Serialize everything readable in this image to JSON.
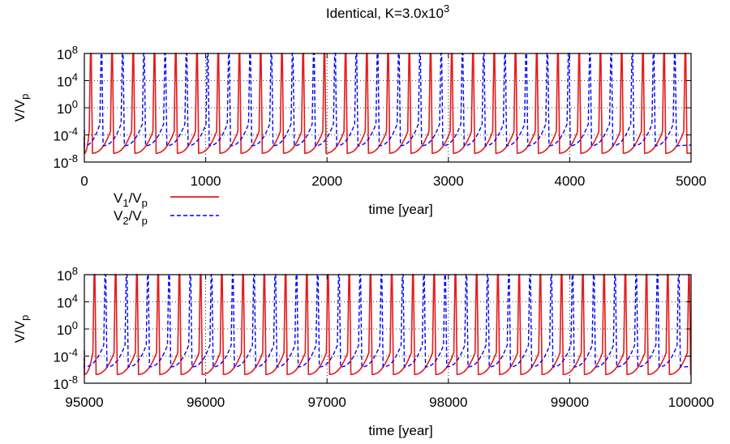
{
  "title": "Identical, K=3.0x10^3",
  "colors": {
    "v1": "#e41a1c",
    "v2": "#0000ff"
  },
  "legend": {
    "placement": "below top panel, left",
    "v1": "V_1/V_p",
    "v2": "V_2/V_p"
  },
  "chart_data": [
    {
      "type": "line",
      "xlabel": "time [year]",
      "ylabel": "V/V_p",
      "xlim": [
        0,
        5000
      ],
      "ylim_log10": [
        -8,
        8
      ],
      "y_scale": "log",
      "xticks": [
        0,
        1000,
        2000,
        3000,
        4000,
        5000
      ],
      "yticks_log10": [
        -8,
        -4,
        0,
        4,
        8
      ],
      "grid": true,
      "series": [
        {
          "name": "V_1/V_p",
          "style": "solid",
          "peak_log10": 8,
          "trough_log10": -6.7,
          "event_times": [
            50,
            225,
            400,
            575,
            750,
            925,
            1100,
            1275,
            1450,
            1625,
            1800,
            1975,
            2150,
            2325,
            2500,
            2675,
            2850,
            3025,
            3200,
            3375,
            3550,
            3725,
            3900,
            4075,
            4250,
            4425,
            4600,
            4775,
            4950
          ]
        },
        {
          "name": "V_2/V_p",
          "style": "dashed",
          "peak_log10": 8,
          "trough_log10": -5.6,
          "event_times": [
            138,
            313,
            488,
            663,
            838,
            1013,
            1188,
            1363,
            1538,
            1713,
            1888,
            2063,
            2238,
            2413,
            2588,
            2763,
            2938,
            3113,
            3288,
            3463,
            3638,
            3813,
            3988,
            4163,
            4338,
            4513,
            4688,
            4863
          ]
        }
      ]
    },
    {
      "type": "line",
      "xlabel": "time [year]",
      "ylabel": "V/V_p",
      "xlim": [
        95000,
        100000
      ],
      "ylim_log10": [
        -8,
        8
      ],
      "y_scale": "log",
      "xticks": [
        95000,
        96000,
        97000,
        98000,
        99000,
        100000
      ],
      "yticks_log10": [
        -8,
        -4,
        0,
        4,
        8
      ],
      "grid": true,
      "series": [
        {
          "name": "V_1/V_p",
          "style": "solid",
          "peak_log10": 8,
          "trough_log10": -6.7,
          "event_times": [
            95080,
            95255,
            95430,
            95605,
            95780,
            95955,
            96130,
            96305,
            96480,
            96655,
            96830,
            97005,
            97180,
            97355,
            97530,
            97705,
            97880,
            98055,
            98230,
            98405,
            98580,
            98755,
            98930,
            99105,
            99280,
            99455,
            99630,
            99805,
            99980
          ]
        },
        {
          "name": "V_2/V_p",
          "style": "dashed",
          "peak_log10": 8,
          "trough_log10": -5.6,
          "event_times": [
            95170,
            95345,
            95520,
            95695,
            95870,
            96045,
            96220,
            96395,
            96570,
            96745,
            96920,
            97095,
            97270,
            97445,
            97620,
            97795,
            97970,
            98145,
            98320,
            98495,
            98670,
            98845,
            99020,
            99195,
            99370,
            99545,
            99720,
            99895
          ]
        }
      ]
    }
  ]
}
